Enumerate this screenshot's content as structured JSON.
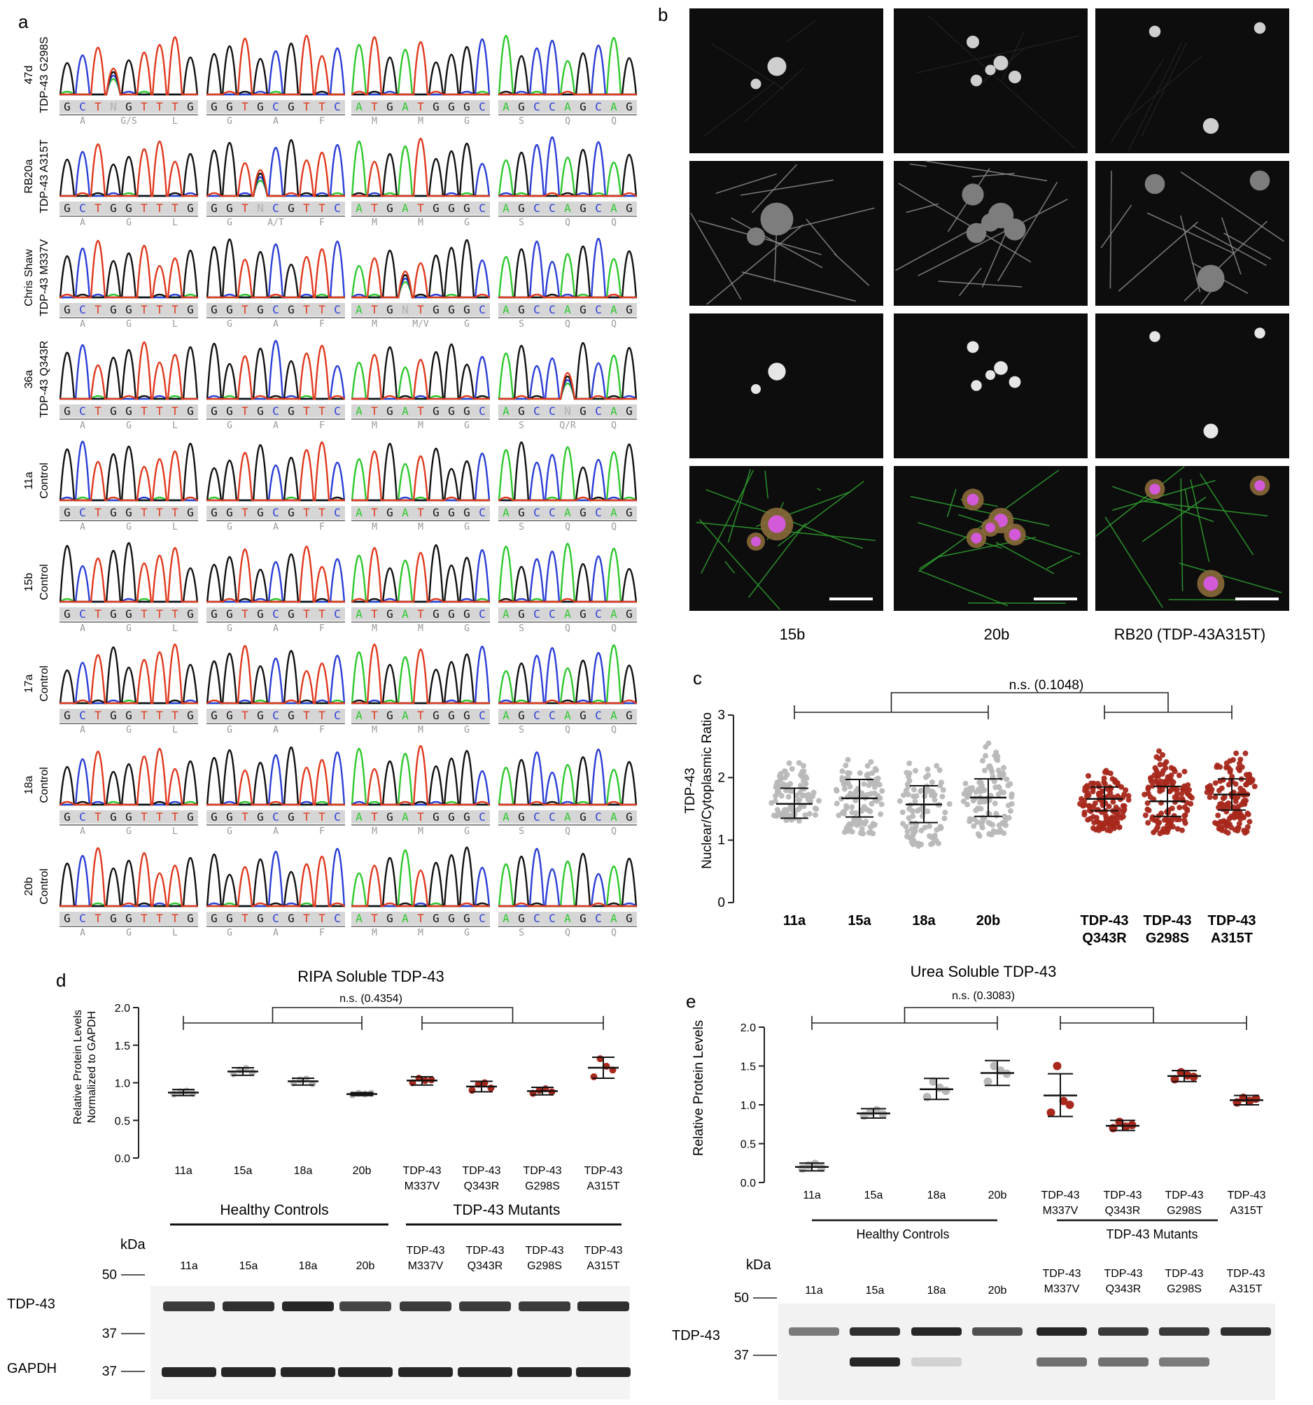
{
  "panel_letters": {
    "a": "a",
    "b": "b",
    "c": "c",
    "d": "d",
    "e": "e"
  },
  "panel_a": {
    "rows": [
      {
        "line1": "47d",
        "line2": "TDP-43 G298S",
        "seqs": [
          "GCTNGTTTG",
          "GGTGCGTTC",
          "ATGATGGGC",
          "AGCCAGCAG"
        ],
        "aas": [
          [
            "A",
            "G/S",
            "L"
          ],
          [
            "G",
            "A",
            "F"
          ],
          [
            "M",
            "M",
            "G"
          ],
          [
            "S",
            "Q",
            "Q"
          ]
        ]
      },
      {
        "line1": "RB20a",
        "line2": "TDP-43 A315T",
        "seqs": [
          "GCTGGTTTG",
          "GGTNCGTTC",
          "ATGATGGGC",
          "AGCCAGCAG"
        ],
        "aas": [
          [
            "A",
            "G",
            "L"
          ],
          [
            "G",
            "A/T",
            "F"
          ],
          [
            "M",
            "M",
            "G"
          ],
          [
            "S",
            "Q",
            "Q"
          ]
        ]
      },
      {
        "line1": "Chris Shaw",
        "line2": "TDP-43 M337V",
        "seqs": [
          "GCTGGTTTG",
          "GGTGCGTTC",
          "ATGNTGGGC",
          "AGCCAGCAG"
        ],
        "aas": [
          [
            "A",
            "G",
            "L"
          ],
          [
            "G",
            "A",
            "F"
          ],
          [
            "M",
            "M/V",
            "G"
          ],
          [
            "S",
            "Q",
            "Q"
          ]
        ]
      },
      {
        "line1": "36a",
        "line2": "TDP-43 Q343R",
        "seqs": [
          "GCTGGTTTG",
          "GGTGCGTTC",
          "ATGATGGGC",
          "AGCCNGCAG"
        ],
        "aas": [
          [
            "A",
            "G",
            "L"
          ],
          [
            "G",
            "A",
            "F"
          ],
          [
            "M",
            "M",
            "G"
          ],
          [
            "S",
            "Q/R",
            "Q"
          ]
        ]
      },
      {
        "line1": "11a",
        "line2": "Control",
        "seqs": [
          "GCTGGTTTG",
          "GGTGCGTTC",
          "ATGATGGGC",
          "AGCCAGCAG"
        ],
        "aas": [
          [
            "A",
            "G",
            "L"
          ],
          [
            "G",
            "A",
            "F"
          ],
          [
            "M",
            "M",
            "G"
          ],
          [
            "S",
            "Q",
            "Q"
          ]
        ]
      },
      {
        "line1": "15b",
        "line2": "Control",
        "seqs": [
          "GCTGGTTTG",
          "GGTGCGTTC",
          "ATGATGGGC",
          "AGCCAGCAG"
        ],
        "aas": [
          [
            "A",
            "G",
            "L"
          ],
          [
            "G",
            "A",
            "F"
          ],
          [
            "M",
            "M",
            "G"
          ],
          [
            "S",
            "Q",
            "Q"
          ]
        ]
      },
      {
        "line1": "17a",
        "line2": "Control",
        "seqs": [
          "GCTGGTTTG",
          "GGTGCGTTC",
          "ATGATGGGC",
          "AGCCAGCAG"
        ],
        "aas": [
          [
            "A",
            "G",
            "L"
          ],
          [
            "G",
            "A",
            "F"
          ],
          [
            "M",
            "M",
            "G"
          ],
          [
            "S",
            "Q",
            "Q"
          ]
        ]
      },
      {
        "line1": "18a",
        "line2": "Control",
        "seqs": [
          "GCTGGTTTG",
          "GGTGCGTTC",
          "ATGATGGGC",
          "AGCCAGCAG"
        ],
        "aas": [
          [
            "A",
            "G",
            "L"
          ],
          [
            "G",
            "A",
            "F"
          ],
          [
            "M",
            "M",
            "G"
          ],
          [
            "S",
            "Q",
            "Q"
          ]
        ]
      },
      {
        "line1": "20b",
        "line2": "Control",
        "seqs": [
          "GCTGGTTTG",
          "GGTGCGTTC",
          "ATGATGGGC",
          "AGCCAGCAG"
        ],
        "aas": [
          [
            "A",
            "G",
            "L"
          ],
          [
            "G",
            "A",
            "F"
          ],
          [
            "M",
            "M",
            "G"
          ],
          [
            "S",
            "Q",
            "Q"
          ]
        ]
      }
    ],
    "base_colors": {
      "A": "#2fc82f",
      "C": "#2b3fd6",
      "G": "#111111",
      "T": "#e03a1f",
      "N": "#b0b0b0"
    }
  },
  "panel_b": {
    "column_labels": [
      "15b",
      "20b",
      "RB20 (TDP-43A315T)"
    ]
  },
  "panel_c": {
    "chart_data": {
      "type": "scatter",
      "ylabel_lines": [
        "TDP-43",
        "Nuclear/Cytoplasmic Ratio"
      ],
      "ylim": [
        0,
        3
      ],
      "yticks": [
        0,
        1,
        2,
        3
      ],
      "significance": "n.s. (0.1048)",
      "groups": [
        {
          "label": [
            "11a"
          ],
          "mean": 1.58,
          "sd_low": 1.35,
          "sd_high": 1.83,
          "min": 1.3,
          "max": 2.3,
          "n": 90,
          "color": "#b8b8b8"
        },
        {
          "label": [
            "15a"
          ],
          "mean": 1.67,
          "sd_low": 1.37,
          "sd_high": 1.97,
          "min": 1.1,
          "max": 2.4,
          "n": 110,
          "color": "#b8b8b8"
        },
        {
          "label": [
            "18a"
          ],
          "mean": 1.57,
          "sd_low": 1.28,
          "sd_high": 1.87,
          "min": 0.9,
          "max": 2.35,
          "n": 100,
          "color": "#b8b8b8"
        },
        {
          "label": [
            "20b"
          ],
          "mean": 1.68,
          "sd_low": 1.38,
          "sd_high": 1.98,
          "min": 1.05,
          "max": 2.6,
          "n": 110,
          "color": "#b8b8b8"
        },
        {
          "label": [
            "TDP-43",
            "Q343R"
          ],
          "mean": 1.66,
          "sd_low": 1.47,
          "sd_high": 1.85,
          "min": 1.15,
          "max": 2.2,
          "n": 130,
          "color": "#a8281c"
        },
        {
          "label": [
            "TDP-43",
            "G298S"
          ],
          "mean": 1.62,
          "sd_low": 1.38,
          "sd_high": 1.86,
          "min": 1.1,
          "max": 2.48,
          "n": 130,
          "color": "#a8281c"
        },
        {
          "label": [
            "TDP-43",
            "A315T"
          ],
          "mean": 1.73,
          "sd_low": 1.48,
          "sd_high": 1.98,
          "min": 1.1,
          "max": 2.5,
          "n": 130,
          "color": "#a8281c"
        }
      ]
    }
  },
  "panel_d": {
    "chart_data": {
      "type": "scatter",
      "title": "RIPA Soluble TDP-43",
      "ylabel_lines": [
        "Relative Protein Levels",
        "Normalized to GAPDH"
      ],
      "ylim": [
        0,
        2.0
      ],
      "yticks": [
        "0.0",
        "0.5",
        "1.0",
        "1.5",
        "2.0"
      ],
      "significance": "n.s. (0.4354)",
      "groups": [
        {
          "label": [
            "11a"
          ],
          "mean": 0.87,
          "sd_low": 0.83,
          "sd_high": 0.91,
          "points": [
            0.85,
            0.88,
            0.89,
            0.86
          ],
          "color": "#b8b8b8"
        },
        {
          "label": [
            "15a"
          ],
          "mean": 1.15,
          "sd_low": 1.1,
          "sd_high": 1.2,
          "points": [
            1.12,
            1.17,
            1.19,
            1.14
          ],
          "color": "#b8b8b8"
        },
        {
          "label": [
            "18a"
          ],
          "mean": 1.02,
          "sd_low": 0.97,
          "sd_high": 1.06,
          "points": [
            1.0,
            1.04,
            1.05,
            0.99
          ],
          "color": "#b8b8b8"
        },
        {
          "label": [
            "20b"
          ],
          "mean": 0.85,
          "sd_low": 0.83,
          "sd_high": 0.87,
          "points": [
            0.84,
            0.86,
            0.85,
            0.86
          ],
          "color": "#b8b8b8"
        },
        {
          "label": [
            "TDP-43",
            "M337V"
          ],
          "mean": 1.03,
          "sd_low": 0.97,
          "sd_high": 1.08,
          "points": [
            1.0,
            1.06,
            1.03,
            1.04
          ],
          "color": "#a8281c"
        },
        {
          "label": [
            "TDP-43",
            "Q343R"
          ],
          "mean": 0.95,
          "sd_low": 0.88,
          "sd_high": 1.02,
          "points": [
            0.9,
            0.98,
            1.0,
            0.93
          ],
          "color": "#a8281c"
        },
        {
          "label": [
            "TDP-43",
            "G298S"
          ],
          "mean": 0.89,
          "sd_low": 0.84,
          "sd_high": 0.94,
          "points": [
            0.86,
            0.9,
            0.92,
            0.88
          ],
          "color": "#a8281c"
        },
        {
          "label": [
            "TDP-43",
            "A315T"
          ],
          "mean": 1.2,
          "sd_low": 1.06,
          "sd_high": 1.34,
          "points": [
            1.08,
            1.32,
            1.22,
            1.17
          ],
          "color": "#a8281c"
        }
      ]
    },
    "group_headers": [
      "Healthy Controls",
      "TDP-43 Mutants"
    ],
    "kda_label": "kDa",
    "lane_labels": [
      [
        "11a"
      ],
      [
        "15a"
      ],
      [
        "18a"
      ],
      [
        "20b"
      ],
      [
        "TDP-43",
        "M337V"
      ],
      [
        "TDP-43",
        "Q343R"
      ],
      [
        "TDP-43",
        "G298S"
      ],
      [
        "TDP-43",
        "A315T"
      ]
    ],
    "markers": [
      "50",
      "37",
      "37"
    ],
    "band_labels": [
      "TDP-43",
      "GAPDH"
    ]
  },
  "panel_e": {
    "chart_data": {
      "type": "scatter",
      "title": "Urea Soluble TDP-43",
      "ylabel_lines": [
        "Relative Protein Levels"
      ],
      "ylim": [
        0,
        2.0
      ],
      "yticks": [
        "0.0",
        "0.5",
        "1.0",
        "1.5",
        "2.0"
      ],
      "significance": "n.s. (0.3083)",
      "groups": [
        {
          "label": [
            "11a"
          ],
          "mean": 0.2,
          "sd_low": 0.15,
          "sd_high": 0.25,
          "points": [
            0.18,
            0.22,
            0.24,
            0.19
          ],
          "color": "#b8b8b8"
        },
        {
          "label": [
            "15a"
          ],
          "mean": 0.89,
          "sd_low": 0.83,
          "sd_high": 0.95,
          "points": [
            0.86,
            0.91,
            0.93,
            0.88
          ],
          "color": "#b8b8b8"
        },
        {
          "label": [
            "18a"
          ],
          "mean": 1.2,
          "sd_low": 1.07,
          "sd_high": 1.34,
          "points": [
            1.1,
            1.3,
            1.22,
            1.18
          ],
          "color": "#b8b8b8"
        },
        {
          "label": [
            "20b"
          ],
          "mean": 1.41,
          "sd_low": 1.25,
          "sd_high": 1.57,
          "points": [
            1.3,
            1.5,
            1.44,
            1.4
          ],
          "color": "#b8b8b8"
        },
        {
          "label": [
            "TDP-43",
            "M337V"
          ],
          "mean": 1.12,
          "sd_low": 0.85,
          "sd_high": 1.4,
          "points": [
            0.9,
            1.5,
            1.05,
            1.0
          ],
          "color": "#a8281c"
        },
        {
          "label": [
            "TDP-43",
            "Q343R"
          ],
          "mean": 0.73,
          "sd_low": 0.67,
          "sd_high": 0.8,
          "points": [
            0.7,
            0.78,
            0.72,
            0.74
          ],
          "color": "#a8281c"
        },
        {
          "label": [
            "TDP-43",
            "G298S"
          ],
          "mean": 1.37,
          "sd_low": 1.3,
          "sd_high": 1.44,
          "points": [
            1.33,
            1.42,
            1.38,
            1.36
          ],
          "color": "#a8281c"
        },
        {
          "label": [
            "TDP-43",
            "A315T"
          ],
          "mean": 1.06,
          "sd_low": 1.0,
          "sd_high": 1.12,
          "points": [
            1.03,
            1.09,
            1.05,
            1.08
          ],
          "color": "#a8281c"
        }
      ]
    },
    "group_headers": [
      "Healthy Controls",
      "TDP-43 Mutants"
    ],
    "kda_label": "kDa",
    "lane_labels": [
      [
        "11a"
      ],
      [
        "15a"
      ],
      [
        "18a"
      ],
      [
        "20b"
      ],
      [
        "TDP-43",
        "M337V"
      ],
      [
        "TDP-43",
        "Q343R"
      ],
      [
        "TDP-43",
        "G298S"
      ],
      [
        "TDP-43",
        "A315T"
      ]
    ],
    "markers": [
      "50",
      "37"
    ],
    "band_labels": [
      "TDP-43"
    ]
  }
}
